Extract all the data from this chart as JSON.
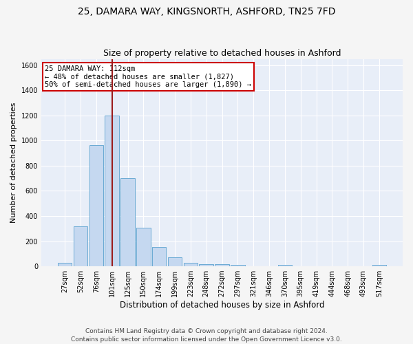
{
  "title1": "25, DAMARA WAY, KINGSNORTH, ASHFORD, TN25 7FD",
  "title2": "Size of property relative to detached houses in Ashford",
  "xlabel": "Distribution of detached houses by size in Ashford",
  "ylabel": "Number of detached properties",
  "bar_labels": [
    "27sqm",
    "52sqm",
    "76sqm",
    "101sqm",
    "125sqm",
    "150sqm",
    "174sqm",
    "199sqm",
    "223sqm",
    "248sqm",
    "272sqm",
    "297sqm",
    "321sqm",
    "346sqm",
    "370sqm",
    "395sqm",
    "419sqm",
    "444sqm",
    "468sqm",
    "493sqm",
    "517sqm"
  ],
  "bar_values": [
    30,
    320,
    965,
    1200,
    700,
    305,
    155,
    70,
    28,
    18,
    15,
    14,
    0,
    0,
    12,
    0,
    0,
    0,
    0,
    0,
    12
  ],
  "bar_color": "#c5d8f0",
  "bar_edge_color": "#6aaad4",
  "vline_color": "#9b1c1c",
  "ylim": [
    0,
    1650
  ],
  "yticks": [
    0,
    200,
    400,
    600,
    800,
    1000,
    1200,
    1400,
    1600
  ],
  "annotation_line1": "25 DAMARA WAY: 112sqm",
  "annotation_line2": "← 48% of detached houses are smaller (1,827)",
  "annotation_line3": "50% of semi-detached houses are larger (1,890) →",
  "annotation_box_color": "#ffffff",
  "annotation_box_edge": "#cc0000",
  "footnote": "Contains HM Land Registry data © Crown copyright and database right 2024.\nContains public sector information licensed under the Open Government Licence v3.0.",
  "bg_color": "#e8eef8",
  "grid_color": "#ffffff",
  "fig_bg_color": "#f5f5f5",
  "title1_fontsize": 10,
  "title2_fontsize": 9,
  "xlabel_fontsize": 8.5,
  "ylabel_fontsize": 8,
  "tick_fontsize": 7,
  "footnote_fontsize": 6.5,
  "annotation_fontsize": 7.5,
  "vline_x_index": 3
}
